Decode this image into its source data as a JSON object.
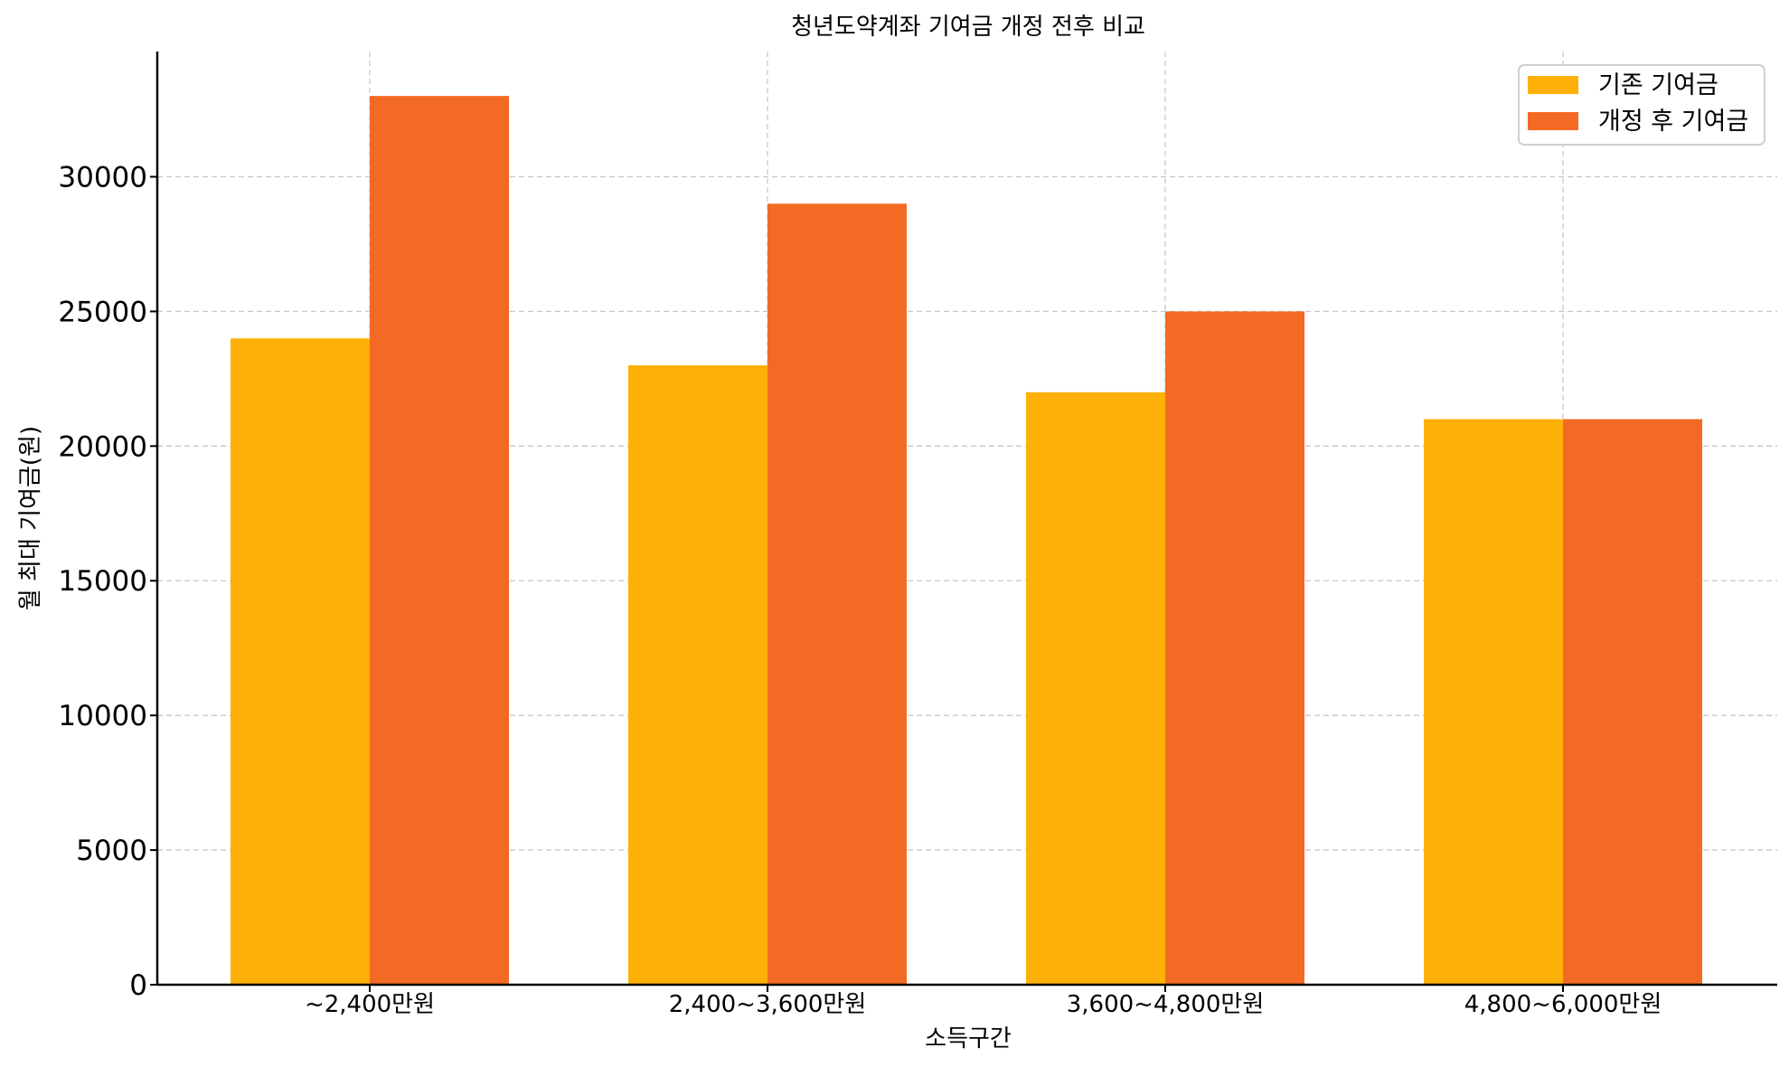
{
  "chart_data": {
    "type": "bar",
    "title": "청년도약계좌 기여금 개정 전후 비교",
    "xlabel": "소득구간",
    "ylabel": "월 최대 기여금(원)",
    "categories": [
      "~2,400만원",
      "2,400~3,600만원",
      "3,600~4,800만원",
      "4,800~6,000만원"
    ],
    "series": [
      {
        "name": "기존 기여금",
        "values": [
          24000,
          23000,
          22000,
          21000
        ],
        "color": "#FDB007"
      },
      {
        "name": "개정 후 기여금",
        "values": [
          33000,
          29000,
          25000,
          21000
        ],
        "color": "#F36A24"
      }
    ],
    "yticks": [
      0,
      5000,
      10000,
      15000,
      20000,
      25000,
      30000
    ],
    "ylim": [
      0,
      34650
    ],
    "grid": true,
    "legend_position": "top-right"
  }
}
